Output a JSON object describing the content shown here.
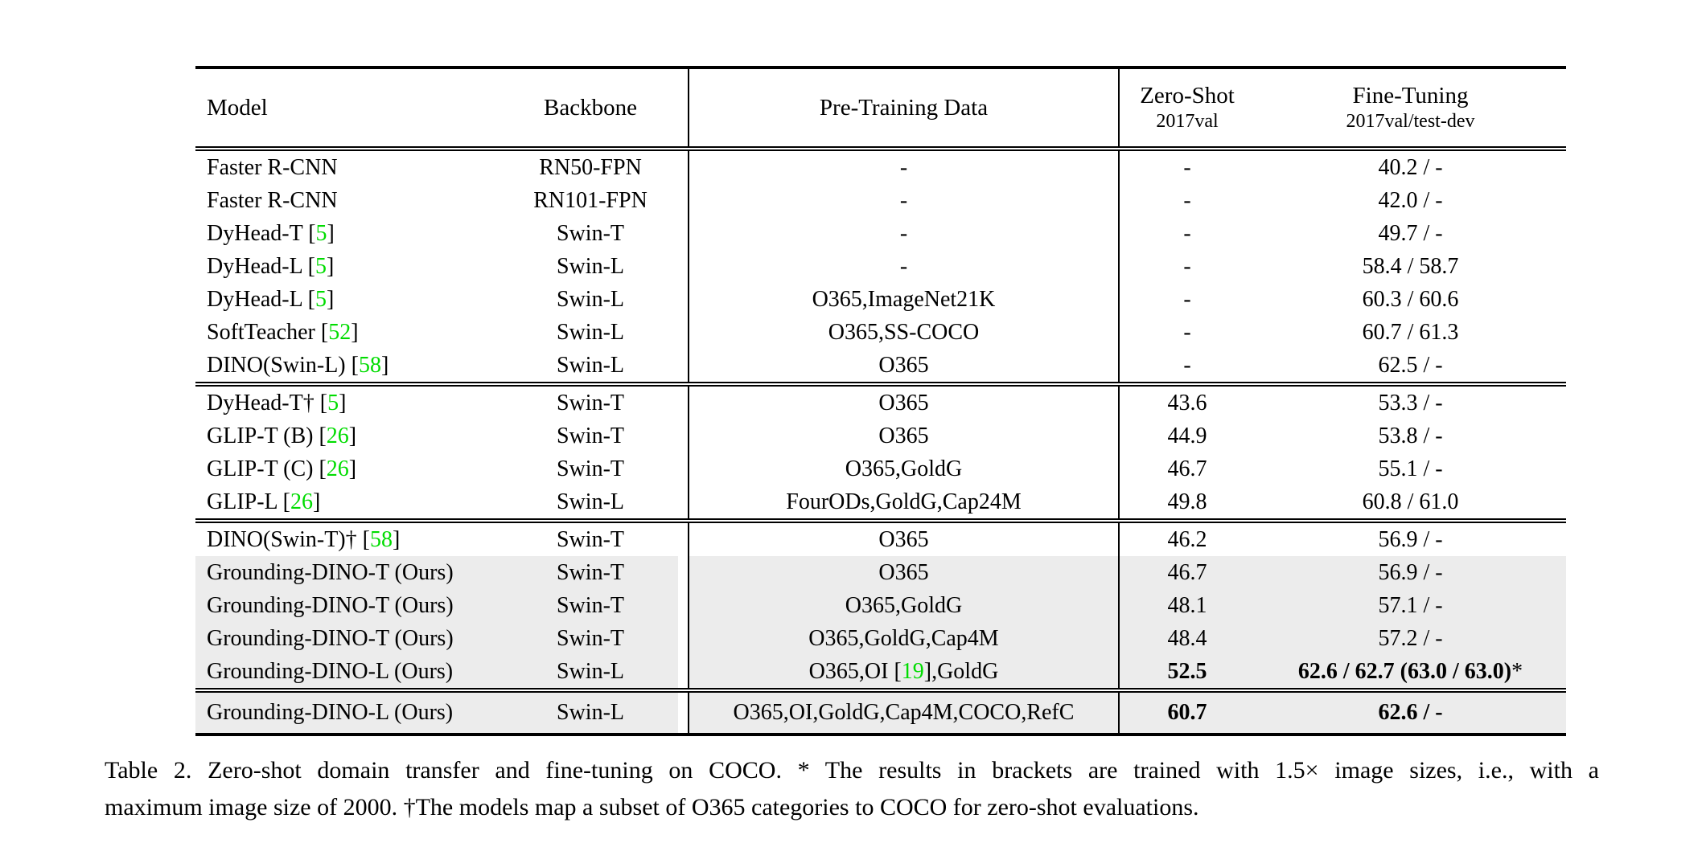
{
  "colors": {
    "citation_green": "#00dc00",
    "row_highlight": "#ececec",
    "rule_black": "#000000"
  },
  "table": {
    "columns": {
      "model": "Model",
      "backbone": "Backbone",
      "pretrain": "Pre-Training Data",
      "zeroshot_line1": "Zero-Shot",
      "zeroshot_line2": "2017val",
      "finetune_line1": "Fine-Tuning",
      "finetune_line2": "2017val/test-dev"
    },
    "blocks": [
      {
        "rows": [
          {
            "hl": false,
            "model": [
              [
                "Faster R-CNN",
                ""
              ]
            ],
            "backbone": "RN50-FPN",
            "pretrain": [
              [
                "-",
                ""
              ]
            ],
            "zs": [
              [
                "-",
                ""
              ]
            ],
            "ft": [
              [
                "40.2 / -",
                ""
              ]
            ]
          },
          {
            "hl": false,
            "model": [
              [
                "Faster R-CNN",
                ""
              ]
            ],
            "backbone": "RN101-FPN",
            "pretrain": [
              [
                "-",
                ""
              ]
            ],
            "zs": [
              [
                "-",
                ""
              ]
            ],
            "ft": [
              [
                "42.0 / -",
                ""
              ]
            ]
          },
          {
            "hl": false,
            "model": [
              [
                "DyHead-T [",
                ""
              ],
              [
                "5",
                "g"
              ],
              [
                "]",
                ""
              ]
            ],
            "backbone": "Swin-T",
            "pretrain": [
              [
                "-",
                ""
              ]
            ],
            "zs": [
              [
                "-",
                ""
              ]
            ],
            "ft": [
              [
                "49.7 / -",
                ""
              ]
            ]
          },
          {
            "hl": false,
            "model": [
              [
                "DyHead-L [",
                ""
              ],
              [
                "5",
                "g"
              ],
              [
                "]",
                ""
              ]
            ],
            "backbone": "Swin-L",
            "pretrain": [
              [
                "-",
                ""
              ]
            ],
            "zs": [
              [
                "-",
                ""
              ]
            ],
            "ft": [
              [
                "58.4 / 58.7",
                ""
              ]
            ]
          },
          {
            "hl": false,
            "model": [
              [
                "DyHead-L [",
                ""
              ],
              [
                "5",
                "g"
              ],
              [
                "]",
                ""
              ]
            ],
            "backbone": "Swin-L",
            "pretrain": [
              [
                "O365,ImageNet21K",
                ""
              ]
            ],
            "zs": [
              [
                "-",
                ""
              ]
            ],
            "ft": [
              [
                "60.3 / 60.6",
                ""
              ]
            ]
          },
          {
            "hl": false,
            "model": [
              [
                "SoftTeacher [",
                ""
              ],
              [
                "52",
                "g"
              ],
              [
                "]",
                ""
              ]
            ],
            "backbone": "Swin-L",
            "pretrain": [
              [
                "O365,SS-COCO",
                ""
              ]
            ],
            "zs": [
              [
                "-",
                ""
              ]
            ],
            "ft": [
              [
                "60.7 / 61.3",
                ""
              ]
            ]
          },
          {
            "hl": false,
            "model": [
              [
                "DINO(Swin-L) [",
                ""
              ],
              [
                "58",
                "g"
              ],
              [
                "]",
                ""
              ]
            ],
            "backbone": "Swin-L",
            "pretrain": [
              [
                "O365",
                ""
              ]
            ],
            "zs": [
              [
                "-",
                ""
              ]
            ],
            "ft": [
              [
                "62.5 / -",
                ""
              ]
            ]
          }
        ]
      },
      {
        "rows": [
          {
            "hl": false,
            "model": [
              [
                "DyHead-T† [",
                ""
              ],
              [
                "5",
                "g"
              ],
              [
                "]",
                ""
              ]
            ],
            "backbone": "Swin-T",
            "pretrain": [
              [
                "O365",
                ""
              ]
            ],
            "zs": [
              [
                "43.6",
                ""
              ]
            ],
            "ft": [
              [
                "53.3 / -",
                ""
              ]
            ]
          },
          {
            "hl": false,
            "model": [
              [
                "GLIP-T (B) [",
                ""
              ],
              [
                "26",
                "g"
              ],
              [
                "]",
                ""
              ]
            ],
            "backbone": "Swin-T",
            "pretrain": [
              [
                "O365",
                ""
              ]
            ],
            "zs": [
              [
                "44.9",
                ""
              ]
            ],
            "ft": [
              [
                "53.8 / -",
                ""
              ]
            ]
          },
          {
            "hl": false,
            "model": [
              [
                "GLIP-T (C) [",
                ""
              ],
              [
                "26",
                "g"
              ],
              [
                "]",
                ""
              ]
            ],
            "backbone": "Swin-T",
            "pretrain": [
              [
                "O365,GoldG",
                ""
              ]
            ],
            "zs": [
              [
                "46.7",
                ""
              ]
            ],
            "ft": [
              [
                "55.1 / -",
                ""
              ]
            ]
          },
          {
            "hl": false,
            "model": [
              [
                "GLIP-L [",
                ""
              ],
              [
                "26",
                "g"
              ],
              [
                "]",
                ""
              ]
            ],
            "backbone": "Swin-L",
            "pretrain": [
              [
                "FourODs,GoldG,Cap24M",
                ""
              ]
            ],
            "zs": [
              [
                "49.8",
                ""
              ]
            ],
            "ft": [
              [
                "60.8 / 61.0",
                ""
              ]
            ]
          }
        ]
      },
      {
        "rows": [
          {
            "hl": false,
            "model": [
              [
                "DINO(Swin-T)† [",
                ""
              ],
              [
                "58",
                "g"
              ],
              [
                "]",
                ""
              ]
            ],
            "backbone": "Swin-T",
            "pretrain": [
              [
                "O365",
                ""
              ]
            ],
            "zs": [
              [
                "46.2",
                ""
              ]
            ],
            "ft": [
              [
                "56.9 / -",
                ""
              ]
            ]
          },
          {
            "hl": true,
            "model": [
              [
                "Grounding-DINO-T (Ours)",
                ""
              ]
            ],
            "backbone": "Swin-T",
            "pretrain": [
              [
                "O365",
                ""
              ]
            ],
            "zs": [
              [
                "46.7",
                ""
              ]
            ],
            "ft": [
              [
                "56.9 / -",
                ""
              ]
            ]
          },
          {
            "hl": true,
            "model": [
              [
                "Grounding-DINO-T (Ours)",
                ""
              ]
            ],
            "backbone": "Swin-T",
            "pretrain": [
              [
                "O365,GoldG",
                ""
              ]
            ],
            "zs": [
              [
                "48.1",
                ""
              ]
            ],
            "ft": [
              [
                "57.1 / -",
                ""
              ]
            ]
          },
          {
            "hl": true,
            "model": [
              [
                "Grounding-DINO-T (Ours)",
                ""
              ]
            ],
            "backbone": "Swin-T",
            "pretrain": [
              [
                "O365,GoldG,Cap4M",
                ""
              ]
            ],
            "zs": [
              [
                "48.4",
                ""
              ]
            ],
            "ft": [
              [
                "57.2 / -",
                ""
              ]
            ]
          },
          {
            "hl": true,
            "model": [
              [
                "Grounding-DINO-L (Ours)",
                ""
              ]
            ],
            "backbone": "Swin-L",
            "pretrain": [
              [
                "O365,OI [",
                ""
              ],
              [
                "19",
                "g"
              ],
              [
                "],GoldG",
                ""
              ]
            ],
            "zs": [
              [
                "52.5",
                "b"
              ]
            ],
            "ft": [
              [
                "62.6 / 62.7 (63.0 / 63.0)",
                "b"
              ],
              [
                "*",
                ""
              ]
            ]
          }
        ]
      },
      {
        "rows": [
          {
            "hl": true,
            "model": [
              [
                "Grounding-DINO-L (Ours)",
                ""
              ]
            ],
            "backbone": "Swin-L",
            "pretrain": [
              [
                "O365,OI,GoldG,Cap4M,COCO,RefC",
                ""
              ]
            ],
            "zs": [
              [
                "60.7",
                "b"
              ]
            ],
            "ft": [
              [
                "62.6 / -",
                "b"
              ]
            ]
          }
        ]
      }
    ]
  },
  "caption": {
    "line1": "Table 2.  Zero-shot domain transfer and fine-tuning on COCO. * The results in brackets are trained with 1.5× image sizes, i.e., with a",
    "line2": "maximum image size of 2000. †The models map a subset of O365 categories to COCO for zero-shot evaluations."
  }
}
